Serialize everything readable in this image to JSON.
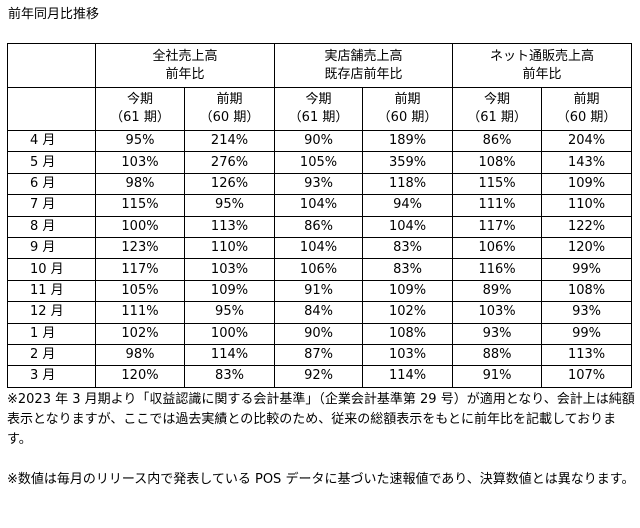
{
  "title": "前年同月比推移",
  "header": {
    "groups": [
      {
        "line1": "全社売上高",
        "line2": "前年比"
      },
      {
        "line1": "実店舗売上高",
        "line2": "既存店前年比"
      },
      {
        "line1": "ネット通販売上高",
        "line2": "前年比"
      }
    ],
    "current": {
      "line1": "今期",
      "line2": "（61 期）"
    },
    "previous": {
      "line1": "前期",
      "line2": "（60 期）"
    }
  },
  "rows": [
    {
      "month": "4 月",
      "values": [
        "95%",
        "214%",
        "90%",
        "189%",
        "86%",
        "204%"
      ]
    },
    {
      "month": "5 月",
      "values": [
        "103%",
        "276%",
        "105%",
        "359%",
        "108%",
        "143%"
      ]
    },
    {
      "month": "6 月",
      "values": [
        "98%",
        "126%",
        "93%",
        "118%",
        "115%",
        "109%"
      ]
    },
    {
      "month": "7 月",
      "values": [
        "115%",
        "95%",
        "104%",
        "94%",
        "111%",
        "110%"
      ]
    },
    {
      "month": "8 月",
      "values": [
        "100%",
        "113%",
        "86%",
        "104%",
        "117%",
        "122%"
      ]
    },
    {
      "month": "9 月",
      "values": [
        "123%",
        "110%",
        "104%",
        "83%",
        "106%",
        "120%"
      ]
    },
    {
      "month": "10 月",
      "values": [
        "117%",
        "103%",
        "106%",
        "83%",
        "116%",
        "99%"
      ]
    },
    {
      "month": "11 月",
      "values": [
        "105%",
        "109%",
        "91%",
        "109%",
        "89%",
        "108%"
      ]
    },
    {
      "month": "12 月",
      "values": [
        "111%",
        "95%",
        "84%",
        "102%",
        "103%",
        "93%"
      ]
    },
    {
      "month": "1 月",
      "values": [
        "102%",
        "100%",
        "90%",
        "108%",
        "93%",
        "99%"
      ]
    },
    {
      "month": "2 月",
      "values": [
        "98%",
        "114%",
        "87%",
        "103%",
        "88%",
        "113%"
      ]
    },
    {
      "month": "3 月",
      "values": [
        "120%",
        "83%",
        "92%",
        "114%",
        "91%",
        "107%"
      ]
    }
  ],
  "notes": {
    "note1": "※2023 年 3 月期より「収益認識に関する会計基準」（企業会計基準第 29 号）が適用となり、会計上は純額表示となりますが、ここでは過去実績との比較のため、従来の総額表示をもとに前年比を記載しております。",
    "note2": "※数値は毎月のリリース内で発表している POS データに基づいた速報値であり、決算数値とは異なります。"
  }
}
